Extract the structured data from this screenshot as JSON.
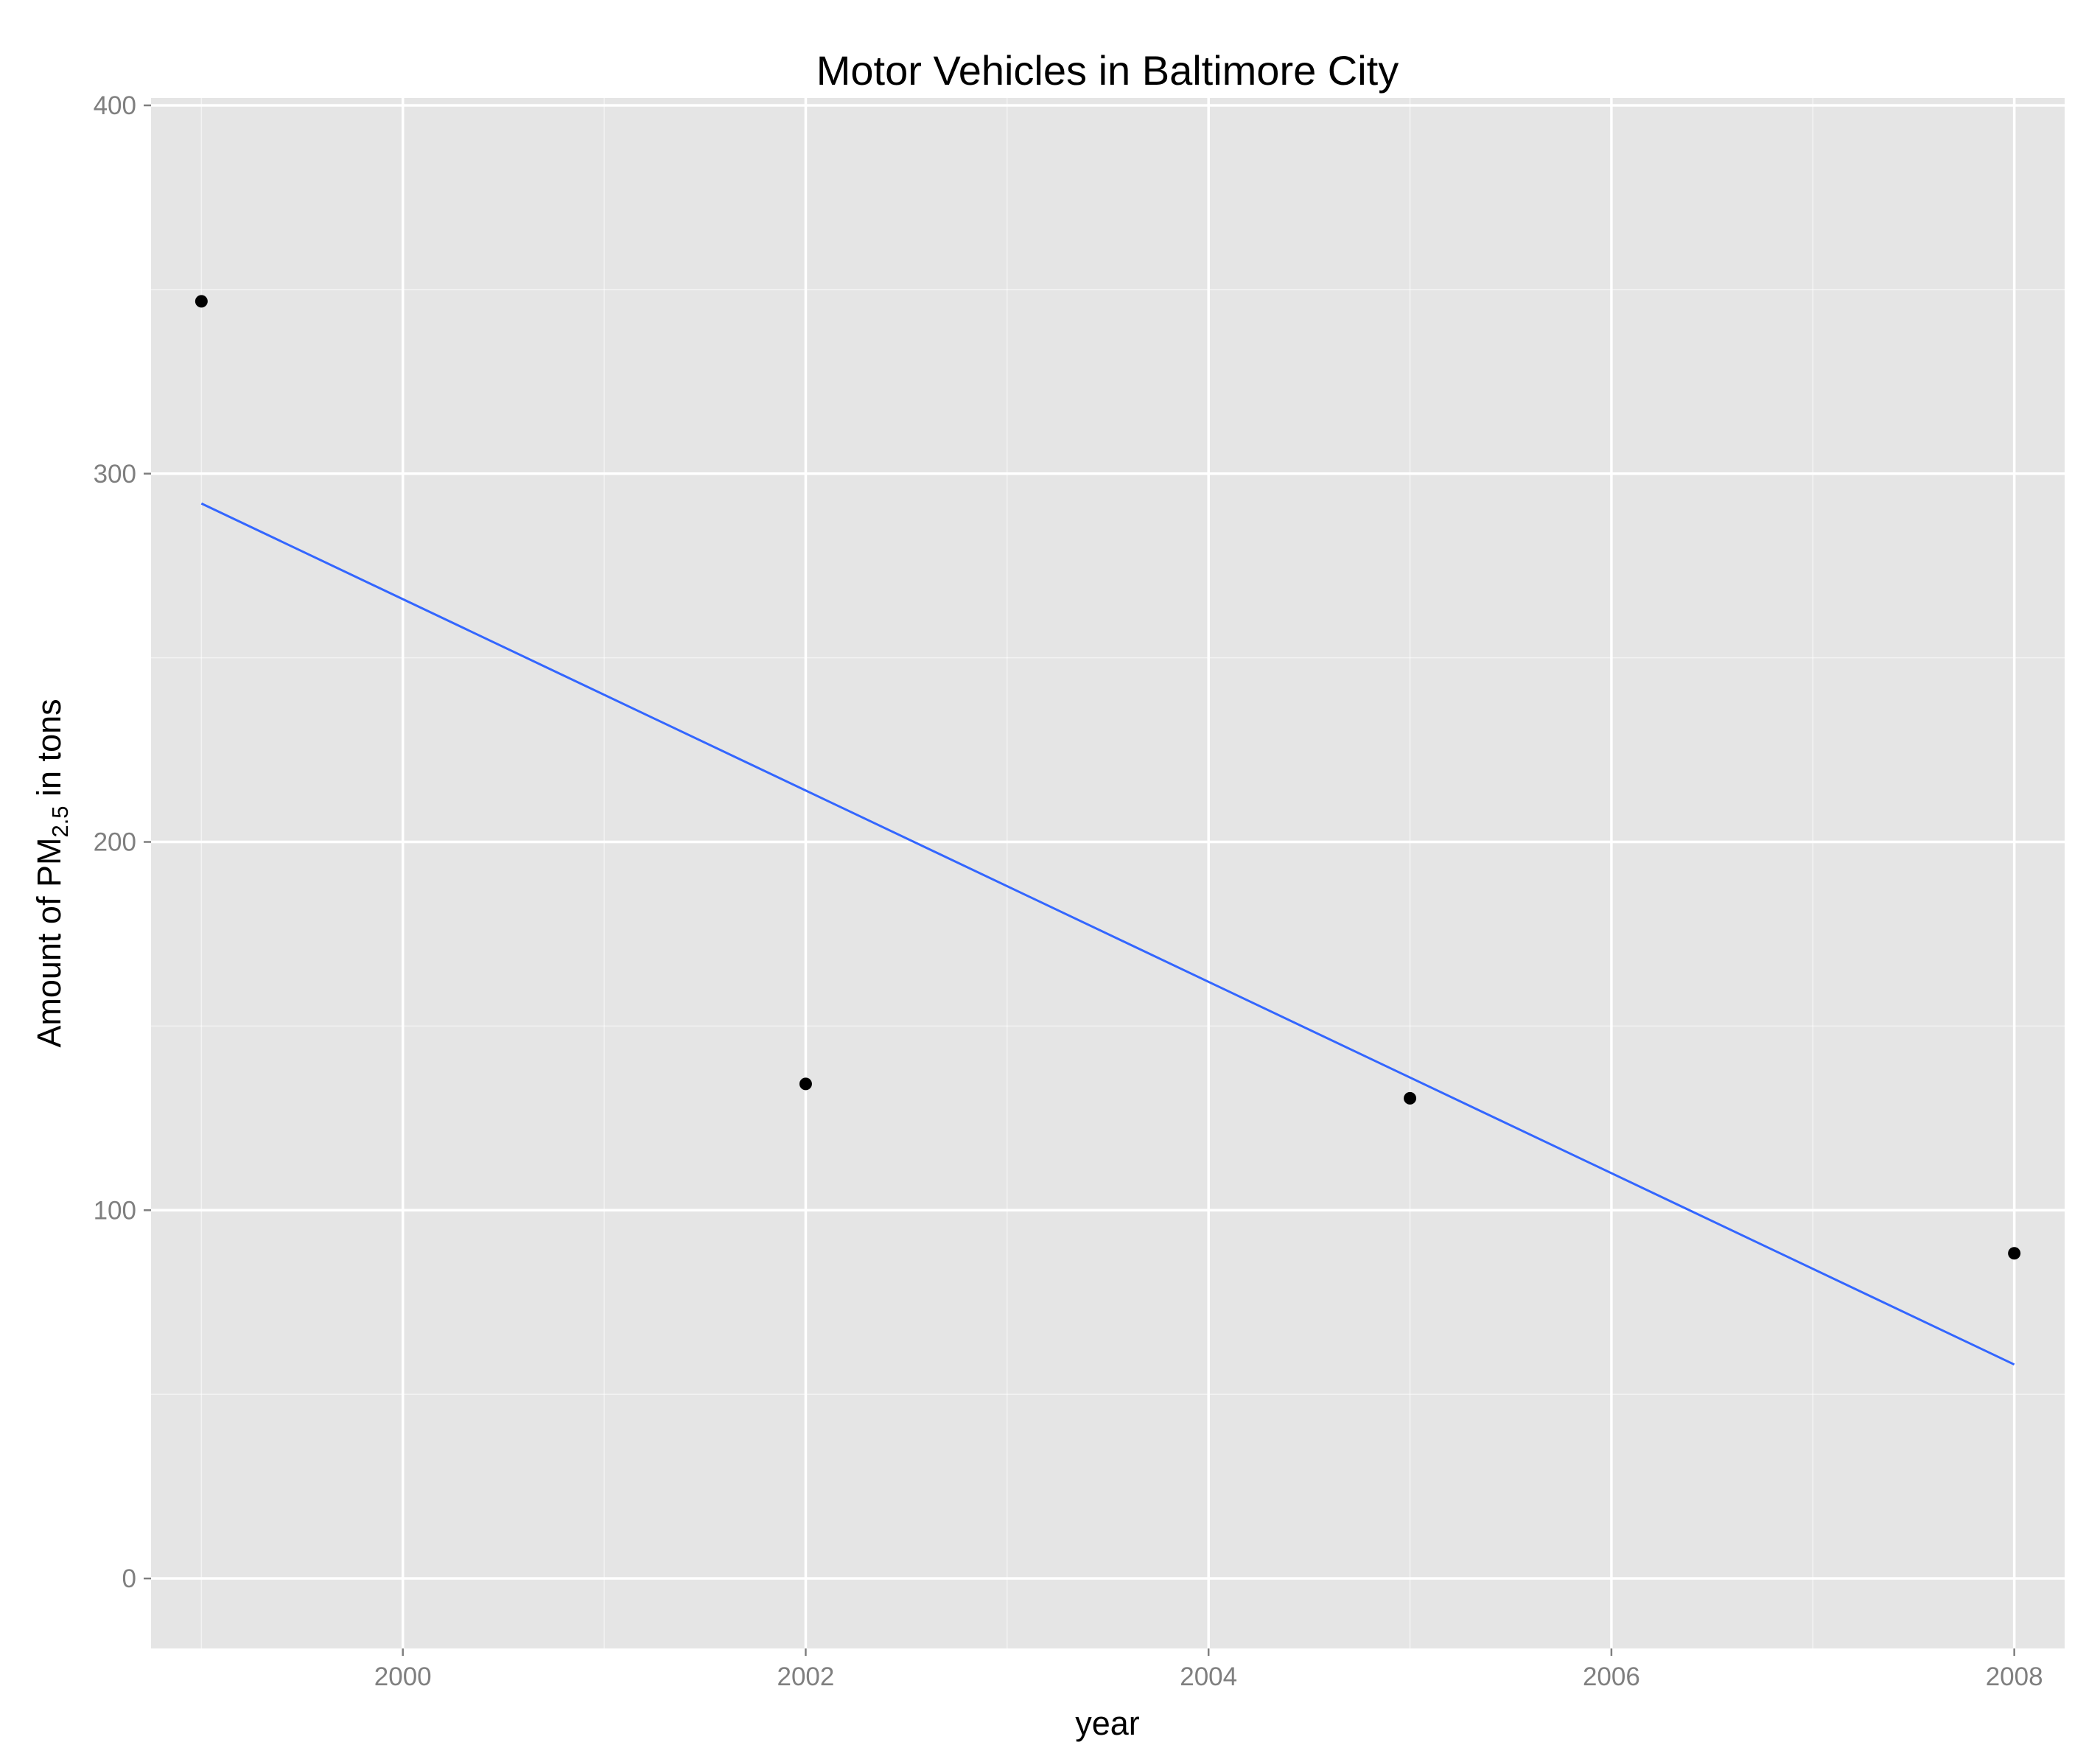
{
  "chart_data": {
    "type": "scatter",
    "title": "Motor Vehicles in Baltimore City",
    "xlabel": "year",
    "ylabel": {
      "prefix": "Amount of PM",
      "subscript": "2.5",
      "suffix": " in tons"
    },
    "xlim": [
      1998.75,
      2008.25
    ],
    "ylim": [
      -19,
      402
    ],
    "x_ticks": [
      2000,
      2002,
      2004,
      2006,
      2008
    ],
    "y_ticks": [
      0,
      100,
      200,
      300,
      400
    ],
    "grid": true,
    "series": [
      {
        "type": "scatter",
        "x": [
          1999,
          2002,
          2005,
          2008
        ],
        "y": [
          346.8,
          134.3,
          130.4,
          88.3
        ]
      },
      {
        "type": "line",
        "x": [
          1999,
          2008
        ],
        "y": [
          291.9,
          58.1
        ]
      }
    ],
    "colors": {
      "panel": "#e5e5e5",
      "grid": "#ffffff",
      "point": "#000000",
      "line": "#3366ff"
    }
  }
}
